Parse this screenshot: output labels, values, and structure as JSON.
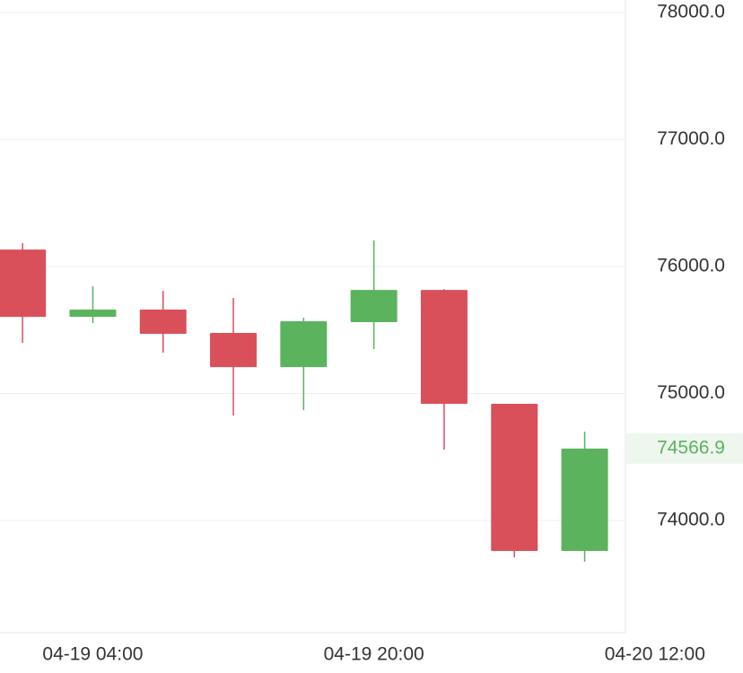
{
  "chart_data": {
    "type": "candlestick",
    "categories": [
      null,
      "04-19 04:00",
      null,
      null,
      null,
      "04-19 20:00",
      null,
      null,
      null,
      "04-20 12:00"
    ],
    "open": [
      76134,
      75604,
      75661,
      75477,
      75208,
      75562,
      75816,
      74919,
      73760,
      null
    ],
    "high": [
      76184,
      75845,
      75809,
      75753,
      75597,
      76205,
      75823,
      74919,
      74700,
      null
    ],
    "low": [
      75399,
      75555,
      75322,
      74827,
      74869,
      75350,
      74558,
      73710,
      73675,
      null
    ],
    "close": [
      75604,
      75661,
      75470,
      75208,
      75569,
      75816,
      74919,
      73760,
      74566.9,
      null
    ],
    "up_color": "#5bb35e",
    "down_color": "#d9505a",
    "ylim": [
      73117,
      78099
    ],
    "yticks": [
      {
        "value": 74000,
        "label": "74000.0"
      },
      {
        "value": 75000,
        "label": "75000.0"
      },
      {
        "value": 76000,
        "label": "76000.0"
      },
      {
        "value": 77000,
        "label": "77000.0"
      },
      {
        "value": 78000,
        "label": "78000.0"
      }
    ],
    "grid": true
  }
}
